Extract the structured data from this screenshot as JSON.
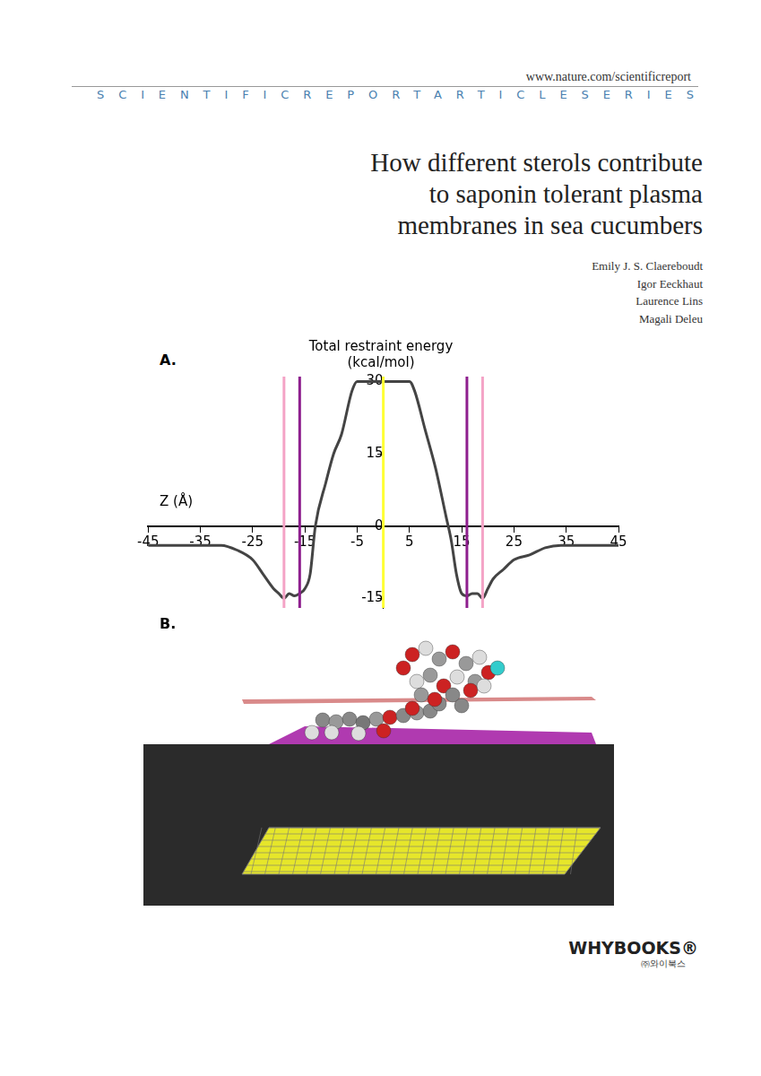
{
  "header": {
    "url": "www.nature.com/scientificreport",
    "series": "SCIENTIFICREPORTARTICLESERIES"
  },
  "title": [
    "How different sterols contribute",
    "to saponin tolerant plasma",
    "membranes in sea cucumbers"
  ],
  "authors": [
    "Emily J. S. Claereboudt",
    "Igor Eeckhaut",
    "Laurence Lins",
    "Magali Deleu"
  ],
  "panels": [
    "A.",
    "B."
  ],
  "chart_data": {
    "type": "line",
    "title": [
      "Total restraint energy",
      "(kcal/mol)"
    ],
    "x_label": "Z (Å)",
    "x": [
      -45,
      -40,
      -35,
      -31,
      -28,
      -25,
      -23,
      -21,
      -20,
      -19,
      -18,
      -17,
      -16,
      -15,
      -14,
      -13,
      -11,
      -9.5,
      -8,
      -6,
      -5,
      0,
      5,
      6,
      8,
      10,
      12,
      13,
      14,
      15,
      16,
      17,
      18,
      19,
      20,
      21,
      23,
      25,
      28,
      31,
      34,
      40,
      45
    ],
    "values": [
      -4,
      -4,
      -4,
      -4,
      -5,
      -7,
      -10,
      -13,
      -14,
      -15,
      -14,
      -14.5,
      -14,
      -13,
      -10,
      0,
      9,
      15,
      19,
      28,
      30,
      30,
      30,
      28,
      20,
      12,
      2,
      -3,
      -10,
      -14,
      -14.5,
      -14,
      -14,
      -15,
      -13,
      -11,
      -9,
      -7,
      -6,
      -4.5,
      -4,
      -4,
      -4
    ],
    "color": "#444444",
    "xlim": [
      -45,
      45
    ],
    "xticks": [
      -45,
      -35,
      -25,
      -15,
      -5,
      5,
      15,
      25,
      35,
      45
    ],
    "ylim": [
      -17,
      31
    ],
    "yticks": [
      -15,
      0,
      15,
      30
    ],
    "grid": false,
    "vlines": [
      {
        "x": -19,
        "color": "#f4a3c6"
      },
      {
        "x": -16,
        "color": "#8e1f8e"
      },
      {
        "x": 0,
        "color": "#ffff33"
      },
      {
        "x": 16,
        "color": "#8e1f8e"
      },
      {
        "x": 19,
        "color": "#f4a3c6"
      }
    ]
  },
  "publisher": {
    "name": "WHYBOOKS®",
    "local_name": "㈜와이북스"
  }
}
